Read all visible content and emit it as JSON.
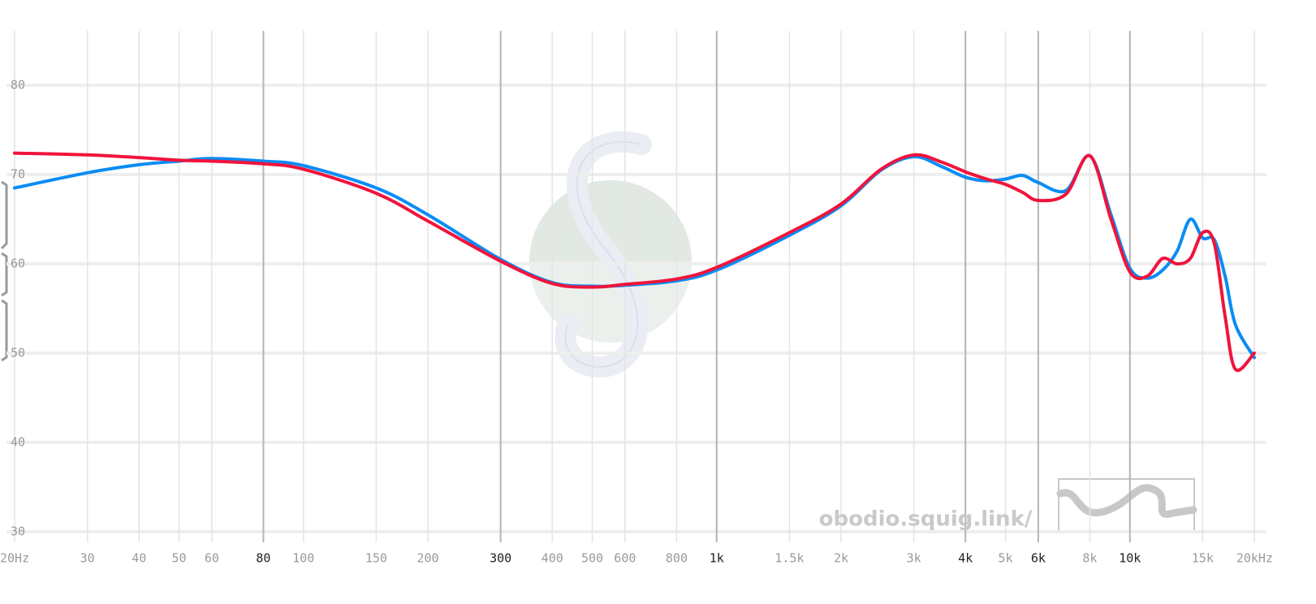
{
  "chart_data": {
    "type": "line",
    "x_scale": "log",
    "xlim": [
      20,
      20000
    ],
    "ylim": [
      29,
      86
    ],
    "xticks": [
      {
        "value": 20,
        "label": "20Hz"
      },
      30,
      40,
      50,
      60,
      80,
      100,
      150,
      200,
      300,
      400,
      500,
      600,
      800,
      {
        "value": 1000,
        "label": "1k"
      },
      {
        "value": 1500,
        "label": "1.5k"
      },
      {
        "value": 2000,
        "label": "2k"
      },
      {
        "value": 3000,
        "label": "3k"
      },
      {
        "value": 4000,
        "label": "4k"
      },
      {
        "value": 5000,
        "label": "5k"
      },
      {
        "value": 6000,
        "label": "6k"
      },
      {
        "value": 8000,
        "label": "8k"
      },
      {
        "value": 10000,
        "label": "10k"
      },
      {
        "value": 15000,
        "label": "15k"
      },
      {
        "value": 20000,
        "label": "20kHz"
      }
    ],
    "emphasized_xticks": [
      80,
      300,
      1000,
      4000,
      6000,
      10000
    ],
    "yticks": [
      30,
      40,
      50,
      60,
      70,
      80
    ],
    "grid": true,
    "watermark": "obodio.squig.link/",
    "x": [
      20,
      30,
      40,
      50,
      60,
      80,
      100,
      150,
      200,
      300,
      400,
      500,
      600,
      800,
      1000,
      1500,
      2000,
      2500,
      3000,
      3500,
      4000,
      4500,
      5000,
      5500,
      6000,
      7000,
      8000,
      9000,
      10000,
      11000,
      12000,
      13000,
      14000,
      15000,
      16000,
      17000,
      18000,
      20000
    ],
    "series": [
      {
        "name": "Blue",
        "color": "#0a8cf5",
        "values": [
          68.5,
          70.2,
          71.1,
          71.5,
          71.8,
          71.5,
          71.0,
          68.5,
          65.5,
          60.5,
          57.9,
          57.5,
          57.6,
          58.1,
          59.3,
          63.2,
          66.5,
          70.5,
          72.0,
          70.9,
          69.7,
          69.3,
          69.5,
          69.9,
          69.1,
          68.2,
          72.1,
          65.5,
          59.5,
          58.4,
          59.3,
          61.4,
          65.0,
          62.9,
          62.7,
          58.6,
          53.2,
          49.5
        ]
      },
      {
        "name": "Red",
        "color": "#f0143c",
        "values": [
          72.4,
          72.2,
          71.9,
          71.6,
          71.5,
          71.2,
          70.6,
          67.9,
          64.8,
          60.3,
          57.8,
          57.4,
          57.7,
          58.3,
          59.6,
          63.5,
          66.7,
          70.6,
          72.2,
          71.4,
          70.3,
          69.5,
          68.9,
          68.0,
          67.1,
          67.8,
          72.1,
          65.0,
          59.1,
          58.6,
          60.6,
          60.0,
          60.6,
          63.5,
          62.3,
          54.1,
          48.2,
          50.0
        ]
      }
    ]
  }
}
